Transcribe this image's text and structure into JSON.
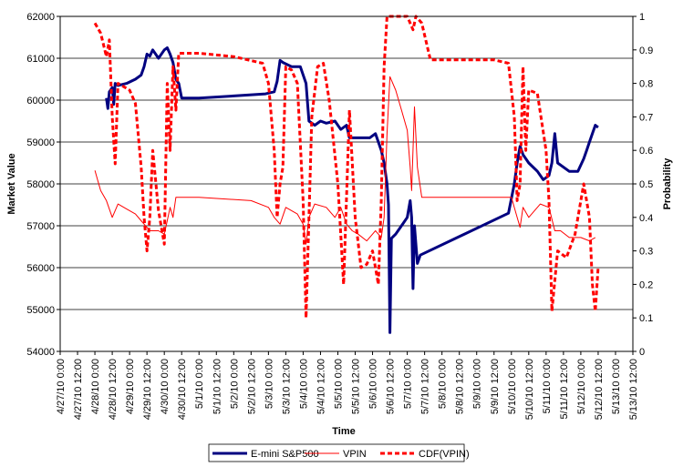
{
  "chart_data": {
    "type": "line",
    "title": "",
    "xlabel": "Time",
    "ylabel_left": "Market Value",
    "ylabel_right": "Probability",
    "y_left_range": [
      54000,
      62000
    ],
    "y_left_ticks": [
      "54000",
      "55000",
      "56000",
      "57000",
      "58000",
      "59000",
      "60000",
      "61000",
      "62000"
    ],
    "y_right_range": [
      0,
      1
    ],
    "y_right_ticks": [
      "0",
      "0.1",
      "0.2",
      "0.3",
      "0.4",
      "0.5",
      "0.6",
      "0.7",
      "0.8",
      "0.9",
      "1"
    ],
    "x_range": [
      "4/27/10 0:00",
      "5/13/10 12:00"
    ],
    "x_ticks": [
      "4/27/10 0:00",
      "4/27/10 12:00",
      "4/28/10 0:00",
      "4/28/10 12:00",
      "4/29/10 0:00",
      "4/29/10 12:00",
      "4/30/10 0:00",
      "4/30/10 12:00",
      "5/1/10 0:00",
      "5/1/10 12:00",
      "5/2/10 0:00",
      "5/2/10 12:00",
      "5/3/10 0:00",
      "5/3/10 12:00",
      "5/4/10 0:00",
      "5/4/10 12:00",
      "5/5/10 0:00",
      "5/5/10 12:00",
      "5/6/10 0:00",
      "5/6/10 12:00",
      "5/7/10 0:00",
      "5/7/10 12:00",
      "5/8/10 0:00",
      "5/8/10 12:00",
      "5/9/10 0:00",
      "5/9/10 12:00",
      "5/10/10 0:00",
      "5/10/10 12:00",
      "5/11/10 0:00",
      "5/11/10 12:00",
      "5/12/10 0:00",
      "5/12/10 12:00",
      "5/13/10 0:00",
      "5/13/10 12:00"
    ],
    "grid": "horizontal",
    "legend_position": "bottom",
    "series": [
      {
        "name": "E-mini S&P500",
        "axis": "left",
        "color": "#000080",
        "style": "solid-thick",
        "points": [
          [
            "4/28/10 8:00",
            60050
          ],
          [
            "4/28/10 9:00",
            59800
          ],
          [
            "4/28/10 10:00",
            60200
          ],
          [
            "4/28/10 12:00",
            60300
          ],
          [
            "4/28/10 13:00",
            59900
          ],
          [
            "4/28/10 14:00",
            60400
          ],
          [
            "4/28/10 16:00",
            60350
          ],
          [
            "4/28/10 22:00",
            60400
          ],
          [
            "4/29/10 4:00",
            60500
          ],
          [
            "4/29/10 8:00",
            60600
          ],
          [
            "4/29/10 10:00",
            60800
          ],
          [
            "4/29/10 12:00",
            61100
          ],
          [
            "4/29/10 14:00",
            61050
          ],
          [
            "4/29/10 16:00",
            61200
          ],
          [
            "4/29/10 20:00",
            61000
          ],
          [
            "4/30/10 0:00",
            61200
          ],
          [
            "4/30/10 2:00",
            61250
          ],
          [
            "4/30/10 4:00",
            61100
          ],
          [
            "4/30/10 6:00",
            60900
          ],
          [
            "4/30/10 8:00",
            60500
          ],
          [
            "4/30/10 10:00",
            60400
          ],
          [
            "4/30/10 12:00",
            60050
          ],
          [
            "5/1/10 0:00",
            60050
          ],
          [
            "5/2/10 0:00",
            60100
          ],
          [
            "5/2/10 22:00",
            60150
          ],
          [
            "5/3/10 4:00",
            60200
          ],
          [
            "5/3/10 6:00",
            60450
          ],
          [
            "5/3/10 8:00",
            60950
          ],
          [
            "5/3/10 10:00",
            60900
          ],
          [
            "5/3/10 16:00",
            60800
          ],
          [
            "5/3/10 22:00",
            60800
          ],
          [
            "5/4/10 2:00",
            60400
          ],
          [
            "5/4/10 4:00",
            59500
          ],
          [
            "5/4/10 8:00",
            59400
          ],
          [
            "5/4/10 12:00",
            59500
          ],
          [
            "5/4/10 16:00",
            59450
          ],
          [
            "5/4/10 22:00",
            59500
          ],
          [
            "5/5/10 2:00",
            59300
          ],
          [
            "5/5/10 6:00",
            59400
          ],
          [
            "5/5/10 8:00",
            59100
          ],
          [
            "5/5/10 14:00",
            59100
          ],
          [
            "5/5/10 22:00",
            59100
          ],
          [
            "5/6/10 2:00",
            59200
          ],
          [
            "5/6/10 6:00",
            58800
          ],
          [
            "5/6/10 8:00",
            58500
          ],
          [
            "5/6/10 10:00",
            58000
          ],
          [
            "5/6/10 11:00",
            57500
          ],
          [
            "5/6/10 12:00",
            54450
          ],
          [
            "5/6/10 13:00",
            56700
          ],
          [
            "5/6/10 16:00",
            56800
          ],
          [
            "5/6/10 20:00",
            57000
          ],
          [
            "5/7/10 0:00",
            57200
          ],
          [
            "5/7/10 2:00",
            57600
          ],
          [
            "5/7/10 3:00",
            57200
          ],
          [
            "5/7/10 4:00",
            55500
          ],
          [
            "5/7/10 5:00",
            57000
          ],
          [
            "5/7/10 7:00",
            56100
          ],
          [
            "5/7/10 9:00",
            56300
          ],
          [
            "5/9/10 22:00",
            57300
          ],
          [
            "5/10/10 2:00",
            58000
          ],
          [
            "5/10/10 4:00",
            58500
          ],
          [
            "5/10/10 6:00",
            58900
          ],
          [
            "5/10/10 8:00",
            58700
          ],
          [
            "5/10/10 12:00",
            58500
          ],
          [
            "5/10/10 18:00",
            58300
          ],
          [
            "5/10/10 22:00",
            58100
          ],
          [
            "5/11/10 2:00",
            58200
          ],
          [
            "5/11/10 4:00",
            58500
          ],
          [
            "5/11/10 6:00",
            59200
          ],
          [
            "5/11/10 8:00",
            58500
          ],
          [
            "5/11/10 16:00",
            58300
          ],
          [
            "5/11/10 22:00",
            58300
          ],
          [
            "5/12/10 2:00",
            58600
          ],
          [
            "5/12/10 4:00",
            58800
          ],
          [
            "5/12/10 6:00",
            59000
          ],
          [
            "5/12/10 8:00",
            59200
          ],
          [
            "5/12/10 10:00",
            59400
          ],
          [
            "5/12/10 12:00",
            59350
          ]
        ]
      },
      {
        "name": "VPIN",
        "axis": "right",
        "color": "#ff0000",
        "style": "solid-thin",
        "points": [
          [
            "4/28/10 0:00",
            0.54
          ],
          [
            "4/28/10 2:00",
            0.51
          ],
          [
            "4/28/10 4:00",
            0.48
          ],
          [
            "4/28/10 8:00",
            0.45
          ],
          [
            "4/28/10 12:00",
            0.4
          ],
          [
            "4/28/10 16:00",
            0.44
          ],
          [
            "4/28/10 20:00",
            0.43
          ],
          [
            "4/29/10 0:00",
            0.42
          ],
          [
            "4/29/10 4:00",
            0.41
          ],
          [
            "4/29/10 8:00",
            0.39
          ],
          [
            "4/29/10 12:00",
            0.37
          ],
          [
            "4/29/10 14:00",
            0.36
          ],
          [
            "4/29/10 20:00",
            0.36
          ],
          [
            "4/30/10 0:00",
            0.35
          ],
          [
            "4/30/10 2:00",
            0.39
          ],
          [
            "4/30/10 4:00",
            0.43
          ],
          [
            "4/30/10 6:00",
            0.4
          ],
          [
            "4/30/10 8:00",
            0.46
          ],
          [
            "5/1/10 0:00",
            0.46
          ],
          [
            "5/2/10 12:00",
            0.45
          ],
          [
            "5/3/10 0:00",
            0.43
          ],
          [
            "5/3/10 4:00",
            0.4
          ],
          [
            "5/3/10 8:00",
            0.38
          ],
          [
            "5/3/10 12:00",
            0.43
          ],
          [
            "5/3/10 20:00",
            0.41
          ],
          [
            "5/4/10 0:00",
            0.38
          ],
          [
            "5/4/10 2:00",
            0.32
          ],
          [
            "5/4/10 4:00",
            0.4
          ],
          [
            "5/4/10 8:00",
            0.44
          ],
          [
            "5/4/10 16:00",
            0.43
          ],
          [
            "5/4/10 22:00",
            0.4
          ],
          [
            "5/5/10 2:00",
            0.43
          ],
          [
            "5/5/10 6:00",
            0.38
          ],
          [
            "5/5/10 10:00",
            0.36
          ],
          [
            "5/5/10 14:00",
            0.35
          ],
          [
            "5/5/10 20:00",
            0.33
          ],
          [
            "5/6/10 2:00",
            0.36
          ],
          [
            "5/6/10 6:00",
            0.34
          ],
          [
            "5/6/10 8:00",
            0.4
          ],
          [
            "5/6/10 10:00",
            0.65
          ],
          [
            "5/6/10 12:00",
            0.82
          ],
          [
            "5/6/10 16:00",
            0.78
          ],
          [
            "5/6/10 20:00",
            0.72
          ],
          [
            "5/7/10 0:00",
            0.66
          ],
          [
            "5/7/10 2:00",
            0.55
          ],
          [
            "5/7/10 3:00",
            0.48
          ],
          [
            "5/7/10 5:00",
            0.73
          ],
          [
            "5/7/10 7:00",
            0.55
          ],
          [
            "5/7/10 10:00",
            0.46
          ],
          [
            "5/9/10 0:00",
            0.46
          ],
          [
            "5/10/10 0:00",
            0.46
          ],
          [
            "5/10/10 4:00",
            0.4
          ],
          [
            "5/10/10 6:00",
            0.37
          ],
          [
            "5/10/10 8:00",
            0.43
          ],
          [
            "5/10/10 12:00",
            0.4
          ],
          [
            "5/10/10 20:00",
            0.44
          ],
          [
            "5/11/10 2:00",
            0.43
          ],
          [
            "5/11/10 6:00",
            0.36
          ],
          [
            "5/11/10 10:00",
            0.36
          ],
          [
            "5/11/10 16:00",
            0.34
          ],
          [
            "5/12/10 0:00",
            0.34
          ],
          [
            "5/12/10 6:00",
            0.33
          ],
          [
            "5/12/10 10:00",
            0.34
          ]
        ]
      },
      {
        "name": "CDF(VPIN)",
        "axis": "right",
        "color": "#ff0000",
        "style": "dashed-thick",
        "points": [
          [
            "4/28/10 0:00",
            0.98
          ],
          [
            "4/28/10 4:00",
            0.95
          ],
          [
            "4/28/10 8:00",
            0.88
          ],
          [
            "4/28/10 10:00",
            0.93
          ],
          [
            "4/28/10 12:00",
            0.7
          ],
          [
            "4/28/10 14:00",
            0.56
          ],
          [
            "4/28/10 16:00",
            0.8
          ],
          [
            "4/29/10 0:00",
            0.78
          ],
          [
            "4/29/10 4:00",
            0.74
          ],
          [
            "4/29/10 8:00",
            0.55
          ],
          [
            "4/29/10 10:00",
            0.4
          ],
          [
            "4/29/10 12:00",
            0.3
          ],
          [
            "4/29/10 14:00",
            0.4
          ],
          [
            "4/29/10 16:00",
            0.6
          ],
          [
            "4/29/10 20:00",
            0.42
          ],
          [
            "4/30/10 0:00",
            0.32
          ],
          [
            "4/30/10 2:00",
            0.8
          ],
          [
            "4/30/10 4:00",
            0.6
          ],
          [
            "4/30/10 6:00",
            0.85
          ],
          [
            "4/30/10 8:00",
            0.72
          ],
          [
            "4/30/10 10:00",
            0.89
          ],
          [
            "5/1/10 0:00",
            0.89
          ],
          [
            "5/2/10 0:00",
            0.88
          ],
          [
            "5/2/10 20:00",
            0.86
          ],
          [
            "5/3/10 0:00",
            0.8
          ],
          [
            "5/3/10 4:00",
            0.6
          ],
          [
            "5/3/10 6:00",
            0.4
          ],
          [
            "5/3/10 8:00",
            0.5
          ],
          [
            "5/3/10 10:00",
            0.55
          ],
          [
            "5/3/10 12:00",
            0.85
          ],
          [
            "5/3/10 16:00",
            0.84
          ],
          [
            "5/3/10 20:00",
            0.8
          ],
          [
            "5/4/10 0:00",
            0.45
          ],
          [
            "5/4/10 2:00",
            0.1
          ],
          [
            "5/4/10 4:00",
            0.4
          ],
          [
            "5/4/10 6:00",
            0.7
          ],
          [
            "5/4/10 10:00",
            0.85
          ],
          [
            "5/4/10 14:00",
            0.86
          ],
          [
            "5/4/10 18:00",
            0.75
          ],
          [
            "5/5/10 0:00",
            0.5
          ],
          [
            "5/5/10 4:00",
            0.2
          ],
          [
            "5/5/10 8:00",
            0.72
          ],
          [
            "5/5/10 12:00",
            0.4
          ],
          [
            "5/5/10 16:00",
            0.25
          ],
          [
            "5/5/10 20:00",
            0.26
          ],
          [
            "5/6/10 0:00",
            0.3
          ],
          [
            "5/6/10 4:00",
            0.2
          ],
          [
            "5/6/10 6:00",
            0.45
          ],
          [
            "5/6/10 8:00",
            0.85
          ],
          [
            "5/6/10 10:00",
            1.0
          ],
          [
            "5/6/10 14:00",
            1.0
          ],
          [
            "5/6/10 20:00",
            1.0
          ],
          [
            "5/7/10 0:00",
            1.0
          ],
          [
            "5/7/10 2:00",
            0.98
          ],
          [
            "5/7/10 4:00",
            0.96
          ],
          [
            "5/7/10 6:00",
            1.0
          ],
          [
            "5/7/10 10:00",
            0.98
          ],
          [
            "5/7/10 16:00",
            0.87
          ],
          [
            "5/8/10 12:00",
            0.87
          ],
          [
            "5/9/10 12:00",
            0.87
          ],
          [
            "5/9/10 22:00",
            0.86
          ],
          [
            "5/10/10 2:00",
            0.7
          ],
          [
            "5/10/10 4:00",
            0.45
          ],
          [
            "5/10/10 6:00",
            0.5
          ],
          [
            "5/10/10 8:00",
            0.85
          ],
          [
            "5/10/10 10:00",
            0.6
          ],
          [
            "5/10/10 12:00",
            0.78
          ],
          [
            "5/10/10 18:00",
            0.77
          ],
          [
            "5/11/10 0:00",
            0.6
          ],
          [
            "5/11/10 2:00",
            0.45
          ],
          [
            "5/11/10 4:00",
            0.12
          ],
          [
            "5/11/10 8:00",
            0.3
          ],
          [
            "5/11/10 14:00",
            0.28
          ],
          [
            "5/11/10 20:00",
            0.35
          ],
          [
            "5/12/10 2:00",
            0.5
          ],
          [
            "5/12/10 6:00",
            0.4
          ],
          [
            "5/12/10 8:00",
            0.2
          ],
          [
            "5/12/10 10:00",
            0.12
          ],
          [
            "5/12/10 12:00",
            0.25
          ]
        ]
      }
    ]
  }
}
